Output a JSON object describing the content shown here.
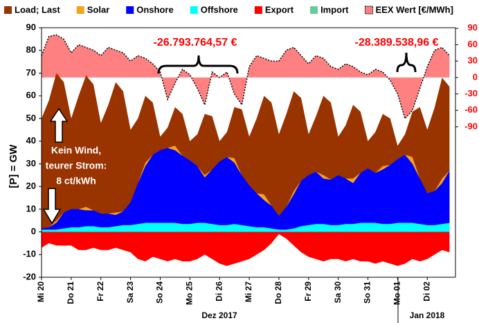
{
  "chart_data": {
    "type": "area",
    "y_label": "[P] = GW",
    "legend": "top",
    "grid": false,
    "xlim": [
      0,
      13.95
    ],
    "xticks": [
      {
        "value": 0,
        "label": "Mi 20"
      },
      {
        "value": 1,
        "label": "Do 21"
      },
      {
        "value": 2,
        "label": "Fr 22"
      },
      {
        "value": 3,
        "label": "Sa 23"
      },
      {
        "value": 4,
        "label": "So 24"
      },
      {
        "value": 5,
        "label": "Mo 25"
      },
      {
        "value": 6,
        "label": "Di 26"
      },
      {
        "value": 7,
        "label": "Mi 27"
      },
      {
        "value": 8,
        "label": "Do 28"
      },
      {
        "value": 9,
        "label": "Fr 29"
      },
      {
        "value": 10,
        "label": "Sa 30"
      },
      {
        "value": 11,
        "label": "So 31"
      },
      {
        "value": 12,
        "label": "Mo 01"
      },
      {
        "value": 13,
        "label": "Di 02"
      }
    ],
    "month_labels": [
      "Dez 2017",
      "Jan 2018"
    ],
    "ylim": [
      -20,
      90
    ],
    "yticks": [
      90,
      80,
      70,
      60,
      50,
      40,
      30,
      20,
      10,
      0,
      -10,
      -20
    ],
    "y2lim": [
      -365,
      91
    ],
    "y2ticks": [
      90,
      60,
      30,
      0,
      -30,
      -60,
      -90
    ],
    "y2_color": "#ff0000",
    "annotations": [
      "-26.793.764,57 €",
      "-28.389.538,96 €",
      "Kein Wind,",
      "teurer Strom:",
      "8 ct/kWh"
    ],
    "x": [
      0,
      0.25,
      0.5,
      0.75,
      1,
      1.25,
      1.5,
      1.75,
      2,
      2.25,
      2.5,
      2.75,
      3,
      3.25,
      3.5,
      3.75,
      4,
      4.25,
      4.5,
      4.75,
      5,
      5.25,
      5.5,
      5.75,
      6,
      6.25,
      6.5,
      6.75,
      7,
      7.25,
      7.5,
      7.75,
      8,
      8.25,
      8.5,
      8.75,
      9,
      9.25,
      9.5,
      9.75,
      10,
      10.25,
      10.5,
      10.75,
      11,
      11.25,
      11.5,
      11.75,
      12,
      12.25,
      12.5,
      12.75,
      13,
      13.25,
      13.5,
      13.75
    ],
    "series": [
      {
        "name": "Load; Last",
        "color": "#993300",
        "stacked": false,
        "values": [
          50,
          58,
          70,
          66,
          50,
          60,
          69,
          65,
          48,
          56,
          66,
          62,
          45,
          50,
          60,
          57,
          42,
          46,
          55,
          52,
          40,
          43,
          52,
          51,
          40,
          44,
          55,
          54,
          42,
          50,
          60,
          57,
          43,
          52,
          62,
          59,
          43,
          51,
          60,
          57,
          42,
          47,
          56,
          53,
          40,
          44,
          52,
          50,
          38,
          43,
          53,
          55,
          45,
          55,
          68,
          64
        ]
      },
      {
        "name": "Solar",
        "color": "#f7a21b",
        "stacked": true,
        "values": [
          0,
          0,
          1,
          0,
          0,
          0,
          1.5,
          0,
          0,
          0,
          1,
          0,
          0,
          0,
          1.5,
          0,
          0,
          0,
          2,
          0,
          0,
          0,
          1,
          0,
          0,
          0,
          2,
          0,
          0,
          0,
          2.5,
          0,
          0,
          0,
          1.5,
          0,
          0,
          0,
          1.5,
          0,
          0,
          0,
          2,
          0,
          0,
          0,
          1.5,
          0,
          0,
          0,
          3,
          0,
          0,
          0,
          2,
          0
        ]
      },
      {
        "name": "Onshore",
        "color": "#0000ff",
        "stacked": true,
        "values": [
          0.5,
          1,
          3,
          7,
          8,
          8,
          7,
          7,
          6,
          6,
          5,
          6,
          10,
          18,
          25,
          30,
          32,
          33,
          32,
          30,
          28,
          25,
          20,
          24,
          28,
          30,
          27,
          22,
          18,
          15,
          12,
          10,
          6,
          10,
          15,
          20,
          22,
          23,
          20,
          20,
          22,
          20,
          18,
          22,
          24,
          22,
          24,
          26,
          28,
          30,
          26,
          20,
          14,
          15,
          18,
          23
        ]
      },
      {
        "name": "Offshore",
        "color": "#00ffff",
        "stacked": true,
        "values": [
          1,
          1,
          1,
          1.5,
          2,
          2,
          2.5,
          2.5,
          2,
          2,
          2.5,
          3,
          3,
          3.5,
          4,
          4,
          4,
          4,
          4,
          3.5,
          3.5,
          4,
          4,
          3.5,
          3,
          3,
          3.5,
          3,
          2.5,
          2,
          2,
          1.5,
          1,
          1,
          1.5,
          2.5,
          3,
          3.5,
          3.5,
          3,
          3,
          3.5,
          3.5,
          4,
          4,
          4,
          3.5,
          3.5,
          4,
          4,
          4,
          3.5,
          3,
          3,
          3.5,
          4
        ]
      },
      {
        "name": "Export",
        "color": "#ff0000",
        "stacked": true,
        "values": [
          -7,
          -5,
          -6,
          -6,
          -6,
          -8,
          -8,
          -7,
          -8,
          -8,
          -7,
          -8,
          -9,
          -12,
          -13,
          -11,
          -12,
          -13,
          -12,
          -13,
          -13,
          -12,
          -10,
          -12,
          -14,
          -15,
          -14,
          -13,
          -12,
          -10,
          -8,
          -5,
          -1,
          -3,
          -6,
          -9,
          -11,
          -12,
          -13,
          -12,
          -12,
          -13,
          -12,
          -13,
          -13,
          -14,
          -13,
          -14,
          -15,
          -14,
          -12,
          -13,
          -12,
          -10,
          -8,
          -9
        ]
      },
      {
        "name": "Import",
        "color": "#66cc99",
        "stacked": true,
        "values": [
          0,
          0,
          0,
          0,
          0,
          0,
          0,
          0,
          0,
          0,
          0,
          0,
          0,
          0,
          0,
          0,
          0,
          0,
          0,
          0,
          0,
          0,
          0,
          0,
          0,
          0,
          0,
          0,
          0,
          0,
          0,
          0,
          0,
          0,
          0,
          0,
          0,
          0,
          0,
          0,
          0,
          0,
          0,
          0,
          0,
          0,
          0,
          0,
          0,
          0,
          0,
          0,
          0,
          0,
          0,
          0
        ]
      },
      {
        "name": "EEX Wert [€/MWh]",
        "color": "#ff8080",
        "axis": "y2",
        "stacked": false,
        "values": [
          40,
          75,
          78,
          70,
          45,
          60,
          55,
          50,
          40,
          55,
          50,
          45,
          30,
          40,
          35,
          25,
          10,
          -40,
          -10,
          15,
          5,
          -20,
          -50,
          10,
          0,
          10,
          -30,
          -50,
          20,
          40,
          35,
          30,
          30,
          50,
          55,
          40,
          25,
          40,
          35,
          20,
          15,
          25,
          20,
          10,
          5,
          15,
          10,
          -5,
          -30,
          -75,
          -60,
          -20,
          20,
          50,
          55,
          40
        ]
      }
    ]
  }
}
